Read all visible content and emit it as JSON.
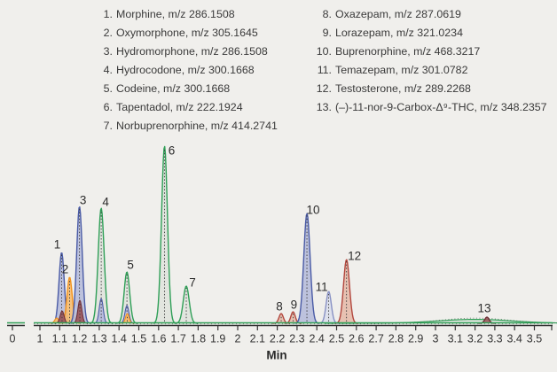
{
  "figure": {
    "type": "LC-MS extracted ion chromatogram",
    "xlabel": "Min",
    "zero_tick_label": "0",
    "background": "#f0efec"
  },
  "legend": {
    "col1": [
      {
        "num": "1.",
        "text": "Morphine, m/z 286.1508"
      },
      {
        "num": "2.",
        "text": "Oxymorphone, m/z 305.1645"
      },
      {
        "num": "3.",
        "text": "Hydromorphone, m/z 286.1508"
      },
      {
        "num": "4.",
        "text": "Hydrocodone, m/z 300.1668"
      },
      {
        "num": "5.",
        "text": "Codeine, m/z 300.1668"
      },
      {
        "num": "6.",
        "text": "Tapentadol, m/z 222.1924"
      },
      {
        "num": "7.",
        "text": "Norbuprenorphine, m/z 414.2741"
      }
    ],
    "col2": [
      {
        "num": "8.",
        "text": "Oxazepam, m/z 287.0619"
      },
      {
        "num": "9.",
        "text": "Lorazepam, m/z 321.0234"
      },
      {
        "num": "10.",
        "text": "Buprenorphine, m/z 468.3217"
      },
      {
        "num": "11.",
        "text": "Temazepam, m/z 301.0782"
      },
      {
        "num": "12.",
        "text": "Testosterone, m/z 289.2268"
      },
      {
        "num": "13.",
        "text": "(–)-11-nor-9-Carbox-Δ⁹-THC, m/z 348.2357"
      }
    ]
  },
  "chart_data": {
    "type": "line",
    "title": "",
    "xlabel": "Min",
    "ylabel": "",
    "y_axis": "none (relative intensity, unlabeled)",
    "x_axis_break": {
      "between": [
        0,
        1
      ]
    },
    "x_range_shown": [
      0,
      3.6
    ],
    "x_tick_step": 0.1,
    "x_tick_labels": [
      "1",
      "1.1",
      "1.2",
      "1.3",
      "1.4",
      "1.5",
      "1.6",
      "1.7",
      "1.8",
      "1.9",
      "2",
      "2.1",
      "2.2",
      "2.3",
      "2.4",
      "2.5",
      "2.6",
      "2.7",
      "2.8",
      "2.9",
      "3",
      "3.1",
      "3.2",
      "3.3",
      "3.4",
      "3.5"
    ],
    "colors": {
      "blue": {
        "stroke": "#4a5ba6",
        "fill": "#b7bcdc"
      },
      "lightblue": {
        "stroke": "#8891c4",
        "fill": "#dcdfec"
      },
      "orange": {
        "stroke": "#f2921d",
        "fill": "#f6bc72"
      },
      "green": {
        "stroke": "#2f9f57",
        "fill": "#e0e3de"
      },
      "red": {
        "stroke": "#b2473e",
        "fill": "#e5bbac"
      },
      "maroon": {
        "stroke": "#6f3138",
        "fill": "#9c5a5e"
      },
      "axis": "#333333",
      "baseline_green": "#2f9f57",
      "label_text": "#2b2b2b"
    },
    "peaks": [
      {
        "label": "1",
        "name": "Morphine",
        "rt": 1.11,
        "intensity_pct": 40,
        "sigma_min": 0.013,
        "color": "blue",
        "label_dx": -5,
        "label_dy": -8
      },
      {
        "label": "2",
        "name": "Oxymorphone",
        "rt": 1.15,
        "intensity_pct": 26,
        "sigma_min": 0.013,
        "color": "orange",
        "label_dx": -5,
        "label_dy": -8
      },
      {
        "label": "3",
        "name": "Hydromorphone",
        "rt": 1.2,
        "intensity_pct": 66,
        "sigma_min": 0.014,
        "color": "blue",
        "label_dx": 4,
        "label_dy": -6
      },
      {
        "label": "4",
        "name": "Hydrocodone",
        "rt": 1.31,
        "intensity_pct": 65,
        "sigma_min": 0.015,
        "color": "green",
        "label_dx": 5,
        "label_dy": -6
      },
      {
        "label": "5",
        "name": "Codeine",
        "rt": 1.44,
        "intensity_pct": 29,
        "sigma_min": 0.014,
        "color": "green",
        "label_dx": 4,
        "label_dy": -7
      },
      {
        "label": "6",
        "name": "Tapentadol",
        "rt": 1.63,
        "intensity_pct": 100,
        "sigma_min": 0.015,
        "color": "green",
        "label_dx": 8,
        "label_dy": 6
      },
      {
        "label": "7",
        "name": "Norbuprenorphine",
        "rt": 1.74,
        "intensity_pct": 21,
        "sigma_min": 0.015,
        "color": "green",
        "label_dx": 7,
        "label_dy": -3
      },
      {
        "label": "8",
        "name": "Oxazepam",
        "rt": 2.22,
        "intensity_pct": 5.5,
        "sigma_min": 0.011,
        "color": "red",
        "label_dx": -2,
        "label_dy": -7
      },
      {
        "label": "9",
        "name": "Lorazepam",
        "rt": 2.28,
        "intensity_pct": 6.5,
        "sigma_min": 0.011,
        "color": "red",
        "label_dx": 1,
        "label_dy": -7
      },
      {
        "label": "10",
        "name": "Buprenorphine",
        "rt": 2.35,
        "intensity_pct": 62,
        "sigma_min": 0.016,
        "color": "blue",
        "label_dx": 7,
        "label_dy": -3
      },
      {
        "label": "11",
        "name": "Temazepam",
        "rt": 2.46,
        "intensity_pct": 18,
        "sigma_min": 0.013,
        "color": "lightblue",
        "label_dx": -8,
        "label_dy": -4
      },
      {
        "label": "12",
        "name": "Testosterone",
        "rt": 2.55,
        "intensity_pct": 36,
        "sigma_min": 0.015,
        "color": "red",
        "label_dx": 9,
        "label_dy": -3
      },
      {
        "label": "13",
        "name": "(–)-11-nor-9-Carbox-Δ⁹-THC",
        "rt": 3.26,
        "intensity_pct": 3.5,
        "sigma_min": 0.011,
        "color": "maroon",
        "label_dx": -3,
        "label_dy": -9
      }
    ],
    "minor_coeluting_peaks": [
      {
        "rt": 1.085,
        "intensity_pct": 3,
        "sigma_min": 0.01,
        "color": "orange"
      },
      {
        "rt": 1.112,
        "intensity_pct": 7,
        "sigma_min": 0.01,
        "color": "maroon"
      },
      {
        "rt": 1.202,
        "intensity_pct": 13,
        "sigma_min": 0.01,
        "color": "maroon"
      },
      {
        "rt": 1.31,
        "intensity_pct": 14,
        "sigma_min": 0.01,
        "color": "blue"
      },
      {
        "rt": 1.44,
        "intensity_pct": 10,
        "sigma_min": 0.01,
        "color": "blue"
      },
      {
        "rt": 1.442,
        "intensity_pct": 5.5,
        "sigma_min": 0.009,
        "color": "orange"
      }
    ],
    "baseline_hump": {
      "center_rt": 3.2,
      "intensity_pct": 2.2,
      "sigma_min": 0.19,
      "color": "green"
    },
    "layout": {
      "grid": false,
      "legend_position": "top, two columns",
      "baseline_color": "green over black axis"
    }
  }
}
